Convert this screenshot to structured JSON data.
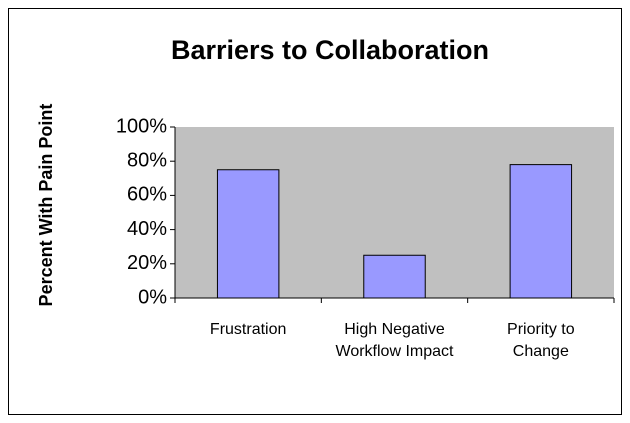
{
  "chart_data": {
    "type": "bar",
    "title": "Barriers to Collaboration",
    "y_label": "Percent With Pain Point",
    "categories": [
      "Frustration",
      "High Negative Workflow Impact",
      "Priority to Change"
    ],
    "values": [
      75,
      25,
      78
    ],
    "color": "#9999ff",
    "ylim": [
      0,
      100
    ],
    "yticks": [
      {
        "value": 0,
        "label": "0%"
      },
      {
        "value": 20,
        "label": "20%"
      },
      {
        "value": 40,
        "label": "40%"
      },
      {
        "value": 60,
        "label": "60%"
      },
      {
        "value": 80,
        "label": "80%"
      },
      {
        "value": 100,
        "label": "100%"
      }
    ],
    "grid": false
  }
}
